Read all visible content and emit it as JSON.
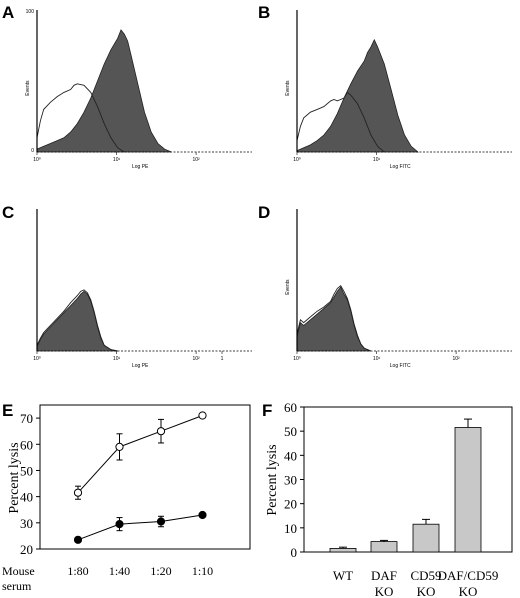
{
  "histograms": [
    {
      "letter": "A",
      "ylabel": "Events",
      "xlabel": "Log PE",
      "ytick_top": "100",
      "ytick_bottom": "0",
      "xticks": [
        "10⁰",
        "10¹",
        "10²"
      ],
      "filled": [
        [
          0,
          2
        ],
        [
          0.1,
          4
        ],
        [
          0.2,
          6
        ],
        [
          0.3,
          8
        ],
        [
          0.4,
          10
        ],
        [
          0.5,
          14
        ],
        [
          0.6,
          20
        ],
        [
          0.7,
          28
        ],
        [
          0.8,
          38
        ],
        [
          0.9,
          50
        ],
        [
          1.0,
          62
        ],
        [
          1.1,
          72
        ],
        [
          1.2,
          80
        ],
        [
          1.25,
          86
        ],
        [
          1.3,
          83
        ],
        [
          1.35,
          78
        ],
        [
          1.4,
          68
        ],
        [
          1.5,
          48
        ],
        [
          1.6,
          28
        ],
        [
          1.7,
          14
        ],
        [
          1.8,
          6
        ],
        [
          1.9,
          2
        ],
        [
          2.0,
          0
        ]
      ],
      "outline": [
        [
          0,
          10
        ],
        [
          0.05,
          22
        ],
        [
          0.1,
          30
        ],
        [
          0.2,
          35
        ],
        [
          0.3,
          39
        ],
        [
          0.4,
          42
        ],
        [
          0.5,
          44
        ],
        [
          0.55,
          47
        ],
        [
          0.6,
          48
        ],
        [
          0.7,
          47
        ],
        [
          0.8,
          42
        ],
        [
          0.9,
          32
        ],
        [
          1.0,
          20
        ],
        [
          1.1,
          10
        ],
        [
          1.2,
          3
        ],
        [
          1.3,
          0
        ]
      ]
    },
    {
      "letter": "B",
      "ylabel": "Events",
      "xlabel": "Log FITC",
      "ytick_top": "",
      "ytick_bottom": "",
      "xticks": [
        "10⁰",
        "10¹",
        ""
      ],
      "filled": [
        [
          0,
          1
        ],
        [
          0.1,
          3
        ],
        [
          0.2,
          5
        ],
        [
          0.3,
          8
        ],
        [
          0.4,
          12
        ],
        [
          0.5,
          18
        ],
        [
          0.6,
          27
        ],
        [
          0.7,
          38
        ],
        [
          0.8,
          48
        ],
        [
          0.9,
          57
        ],
        [
          1.0,
          64
        ],
        [
          1.05,
          70
        ],
        [
          1.1,
          74
        ],
        [
          1.15,
          79
        ],
        [
          1.2,
          74
        ],
        [
          1.3,
          62
        ],
        [
          1.4,
          44
        ],
        [
          1.5,
          26
        ],
        [
          1.6,
          12
        ],
        [
          1.7,
          4
        ],
        [
          1.8,
          0
        ]
      ],
      "outline": [
        [
          0,
          8
        ],
        [
          0.05,
          18
        ],
        [
          0.1,
          24
        ],
        [
          0.2,
          28
        ],
        [
          0.3,
          30
        ],
        [
          0.4,
          32
        ],
        [
          0.5,
          36
        ],
        [
          0.55,
          37
        ],
        [
          0.6,
          36
        ],
        [
          0.7,
          38
        ],
        [
          0.75,
          42
        ],
        [
          0.8,
          40
        ],
        [
          0.9,
          34
        ],
        [
          1.0,
          24
        ],
        [
          1.1,
          12
        ],
        [
          1.2,
          4
        ],
        [
          1.3,
          0
        ]
      ]
    },
    {
      "letter": "C",
      "ylabel": "",
      "xlabel": "Log PE",
      "ytick_top": "",
      "ytick_bottom": "",
      "xticks": [
        "10⁰",
        "10¹",
        "10²",
        "1"
      ],
      "filled": [
        [
          0,
          3
        ],
        [
          0.05,
          8
        ],
        [
          0.1,
          12
        ],
        [
          0.2,
          17
        ],
        [
          0.3,
          22
        ],
        [
          0.4,
          27
        ],
        [
          0.5,
          32
        ],
        [
          0.6,
          37
        ],
        [
          0.65,
          40
        ],
        [
          0.7,
          42
        ],
        [
          0.75,
          40
        ],
        [
          0.8,
          35
        ],
        [
          0.85,
          27
        ],
        [
          0.9,
          17
        ],
        [
          0.95,
          9
        ],
        [
          1.0,
          4
        ],
        [
          1.1,
          1
        ],
        [
          1.2,
          0
        ]
      ],
      "outline": [
        [
          0,
          4
        ],
        [
          0.05,
          9
        ],
        [
          0.1,
          13
        ],
        [
          0.2,
          18
        ],
        [
          0.3,
          23
        ],
        [
          0.4,
          28
        ],
        [
          0.5,
          34
        ],
        [
          0.6,
          39
        ],
        [
          0.65,
          42
        ],
        [
          0.7,
          43
        ],
        [
          0.75,
          41
        ],
        [
          0.8,
          36
        ],
        [
          0.85,
          28
        ],
        [
          0.9,
          18
        ],
        [
          0.95,
          10
        ],
        [
          1.0,
          4
        ],
        [
          1.1,
          1
        ],
        [
          1.2,
          0
        ]
      ]
    },
    {
      "letter": "D",
      "ylabel": "Events",
      "xlabel": "Log FITC",
      "ytick_top": "",
      "ytick_bottom": "",
      "xticks": [
        "10⁰",
        "10¹",
        "10²"
      ],
      "filled": [
        [
          0,
          10
        ],
        [
          0.05,
          20
        ],
        [
          0.1,
          18
        ],
        [
          0.2,
          22
        ],
        [
          0.3,
          26
        ],
        [
          0.4,
          30
        ],
        [
          0.5,
          34
        ],
        [
          0.55,
          38
        ],
        [
          0.6,
          42
        ],
        [
          0.65,
          45
        ],
        [
          0.7,
          40
        ],
        [
          0.75,
          36
        ],
        [
          0.8,
          28
        ],
        [
          0.85,
          18
        ],
        [
          0.9,
          10
        ],
        [
          0.95,
          5
        ],
        [
          1.0,
          2
        ],
        [
          1.1,
          0
        ]
      ],
      "outline": [
        [
          0,
          12
        ],
        [
          0.05,
          22
        ],
        [
          0.1,
          20
        ],
        [
          0.2,
          24
        ],
        [
          0.3,
          28
        ],
        [
          0.4,
          31
        ],
        [
          0.5,
          35
        ],
        [
          0.55,
          40
        ],
        [
          0.6,
          44
        ],
        [
          0.65,
          46
        ],
        [
          0.7,
          42
        ],
        [
          0.75,
          37
        ],
        [
          0.8,
          29
        ],
        [
          0.85,
          19
        ],
        [
          0.9,
          11
        ],
        [
          0.95,
          5
        ],
        [
          1.0,
          2
        ],
        [
          1.1,
          0
        ]
      ]
    }
  ],
  "chart_data": [
    {
      "type": "line",
      "panel": "E",
      "ylabel": "Percent lysis",
      "xlabel": "Mouse serum",
      "categories": [
        "1:80",
        "1:40",
        "1:20",
        "1:10"
      ],
      "ylim": [
        20,
        75
      ],
      "yticks": [
        20,
        30,
        40,
        50,
        60,
        70
      ],
      "series": [
        {
          "marker": "open-circle",
          "values": [
            41.5,
            59,
            65,
            71
          ],
          "errors": [
            2.5,
            5,
            4.5,
            0
          ]
        },
        {
          "marker": "filled-circle",
          "values": [
            23.5,
            29.5,
            30.5,
            33
          ],
          "errors": [
            0,
            2.5,
            2,
            0
          ]
        }
      ]
    },
    {
      "type": "bar",
      "panel": "F",
      "ylabel": "Percent lysis",
      "categories": [
        [
          "WT"
        ],
        [
          "DAF",
          "KO"
        ],
        [
          "CD59",
          "KO"
        ],
        [
          "DAF/CD59",
          "KO"
        ]
      ],
      "values": [
        1.5,
        4.3,
        11.5,
        51.5
      ],
      "errors": [
        0.5,
        0.5,
        2,
        3.5
      ],
      "ylim": [
        0,
        60
      ],
      "yticks": [
        0,
        10,
        20,
        30,
        40,
        50,
        60
      ],
      "bar_color": "#c8c8c8"
    }
  ]
}
